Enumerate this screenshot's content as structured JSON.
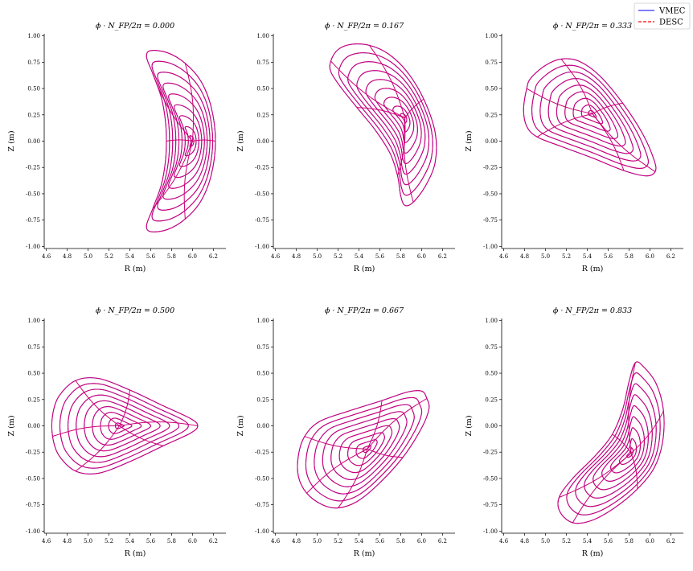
{
  "chart_data": {
    "type": "line",
    "figure": "Flux surfaces of a stellarator equilibrium at six toroidal angles (VMEC vs DESC)",
    "legend": {
      "placement": "top-right",
      "entries": [
        {
          "name": "VMEC",
          "color": "#3333ff",
          "style": "solid"
        },
        {
          "name": "DESC",
          "color": "#ff0000",
          "style": "dashed"
        }
      ]
    },
    "overlay_color": "#cc0077",
    "panels": [
      {
        "title": "ϕ · N_FP/2π = 0.000",
        "xlabel": "R (m)",
        "ylabel": "Z (m)",
        "xlim": [
          4.58,
          6.32
        ],
        "ylim": [
          -1.02,
          1.02
        ],
        "xticks": [
          "4.6",
          "4.8",
          "5.0",
          "5.2",
          "5.4",
          "5.6",
          "5.8",
          "6.0",
          "6.2"
        ],
        "yticks": [
          "-1.00",
          "-0.75",
          "-0.50",
          "-0.25",
          "0.00",
          "0.25",
          "0.50",
          "0.75",
          "1.00"
        ],
        "axis": [
          6.0,
          0.0
        ],
        "boundary": [
          [
            6.22,
            0.0
          ],
          [
            6.18,
            0.32
          ],
          [
            6.08,
            0.57
          ],
          [
            5.93,
            0.74
          ],
          [
            5.76,
            0.84
          ],
          [
            5.6,
            0.86
          ],
          [
            5.56,
            0.8
          ],
          [
            5.62,
            0.64
          ],
          [
            5.7,
            0.42
          ],
          [
            5.74,
            0.2
          ],
          [
            5.75,
            0.0
          ],
          [
            5.74,
            -0.2
          ],
          [
            5.7,
            -0.42
          ],
          [
            5.62,
            -0.64
          ],
          [
            5.56,
            -0.8
          ],
          [
            5.6,
            -0.86
          ],
          [
            5.76,
            -0.84
          ],
          [
            5.93,
            -0.74
          ],
          [
            6.08,
            -0.57
          ],
          [
            6.18,
            -0.32
          ]
        ]
      },
      {
        "title": "ϕ · N_FP/2π = 0.167",
        "xlabel": "R (m)",
        "ylabel": "Z (m)",
        "xlim": [
          4.58,
          6.32
        ],
        "ylim": [
          -1.02,
          1.02
        ],
        "xticks": [
          "4.6",
          "4.8",
          "5.0",
          "5.2",
          "5.4",
          "5.6",
          "5.8",
          "6.0",
          "6.2"
        ],
        "yticks": [
          "-1.00",
          "-0.75",
          "-0.50",
          "-0.25",
          "0.00",
          "0.25",
          "0.50",
          "0.75",
          "1.00"
        ],
        "axis": [
          5.84,
          0.22
        ],
        "boundary": [
          [
            5.13,
            0.76
          ],
          [
            5.2,
            0.87
          ],
          [
            5.33,
            0.92
          ],
          [
            5.5,
            0.91
          ],
          [
            5.68,
            0.83
          ],
          [
            5.86,
            0.66
          ],
          [
            6.02,
            0.4
          ],
          [
            6.13,
            0.08
          ],
          [
            6.13,
            -0.2
          ],
          [
            6.04,
            -0.42
          ],
          [
            5.92,
            -0.58
          ],
          [
            5.84,
            -0.61
          ],
          [
            5.8,
            -0.52
          ],
          [
            5.77,
            -0.33
          ],
          [
            5.7,
            -0.12
          ],
          [
            5.56,
            0.1
          ],
          [
            5.38,
            0.32
          ],
          [
            5.22,
            0.52
          ],
          [
            5.13,
            0.66
          ]
        ]
      },
      {
        "title": "ϕ · N_FP/2π = 0.333",
        "xlabel": "R (m)",
        "ylabel": "Z (m)",
        "xlim": [
          4.58,
          6.32
        ],
        "ylim": [
          -1.02,
          1.02
        ],
        "xticks": [
          "4.6",
          "4.8",
          "5.0",
          "5.2",
          "5.4",
          "5.6",
          "5.8",
          "6.0",
          "6.2"
        ],
        "yticks": [
          "-1.00",
          "-0.75",
          "-0.50",
          "-0.25",
          "0.00",
          "0.25",
          "0.50",
          "0.75",
          "1.00"
        ],
        "axis": [
          5.45,
          0.26
        ],
        "boundary": [
          [
            4.82,
            0.5
          ],
          [
            4.86,
            0.6
          ],
          [
            5.0,
            0.72
          ],
          [
            5.15,
            0.78
          ],
          [
            5.32,
            0.76
          ],
          [
            5.52,
            0.62
          ],
          [
            5.74,
            0.36
          ],
          [
            5.93,
            0.07
          ],
          [
            6.04,
            -0.18
          ],
          [
            6.05,
            -0.29
          ],
          [
            5.96,
            -0.33
          ],
          [
            5.75,
            -0.28
          ],
          [
            5.45,
            -0.16
          ],
          [
            5.15,
            -0.05
          ],
          [
            4.92,
            0.04
          ],
          [
            4.82,
            0.14
          ],
          [
            4.79,
            0.3
          ]
        ]
      },
      {
        "title": "ϕ · N_FP/2π = 0.500",
        "xlabel": "R (m)",
        "ylabel": "Z (m)",
        "xlim": [
          4.58,
          6.32
        ],
        "ylim": [
          -1.02,
          1.02
        ],
        "xticks": [
          "4.6",
          "4.8",
          "5.0",
          "5.2",
          "5.4",
          "5.6",
          "5.8",
          "6.0",
          "6.2"
        ],
        "yticks": [
          "-1.00",
          "-0.75",
          "-0.50",
          "-0.25",
          "0.00",
          "0.25",
          "0.50",
          "0.75",
          "1.00"
        ],
        "axis": [
          5.3,
          0.0
        ],
        "boundary": [
          [
            6.05,
            0.0
          ],
          [
            5.98,
            0.07
          ],
          [
            5.72,
            0.19
          ],
          [
            5.4,
            0.34
          ],
          [
            5.1,
            0.45
          ],
          [
            4.88,
            0.43
          ],
          [
            4.72,
            0.28
          ],
          [
            4.66,
            0.1
          ],
          [
            4.66,
            -0.1
          ],
          [
            4.72,
            -0.28
          ],
          [
            4.88,
            -0.43
          ],
          [
            5.1,
            -0.45
          ],
          [
            5.4,
            -0.34
          ],
          [
            5.72,
            -0.19
          ],
          [
            5.98,
            -0.07
          ]
        ]
      },
      {
        "title": "ϕ · N_FP/2π = 0.667",
        "xlabel": "R (m)",
        "ylabel": "Z (m)",
        "xlim": [
          4.58,
          6.32
        ],
        "ylim": [
          -1.02,
          1.02
        ],
        "xticks": [
          "4.6",
          "4.8",
          "5.0",
          "5.2",
          "5.4",
          "5.6",
          "5.8",
          "6.0",
          "6.2"
        ],
        "yticks": [
          "-1.00",
          "-0.75",
          "-0.50",
          "-0.25",
          "0.00",
          "0.25",
          "0.50",
          "0.75",
          "1.00"
        ],
        "axis": [
          5.48,
          -0.22
        ],
        "boundary": [
          [
            6.05,
            0.26
          ],
          [
            6.0,
            0.33
          ],
          [
            5.86,
            0.32
          ],
          [
            5.62,
            0.24
          ],
          [
            5.3,
            0.14
          ],
          [
            5.02,
            0.04
          ],
          [
            4.88,
            -0.1
          ],
          [
            4.82,
            -0.28
          ],
          [
            4.82,
            -0.48
          ],
          [
            4.9,
            -0.64
          ],
          [
            5.05,
            -0.75
          ],
          [
            5.2,
            -0.78
          ],
          [
            5.38,
            -0.72
          ],
          [
            5.58,
            -0.56
          ],
          [
            5.82,
            -0.3
          ],
          [
            6.0,
            -0.02
          ],
          [
            6.07,
            0.16
          ]
        ]
      },
      {
        "title": "ϕ · N_FP/2π = 0.833",
        "xlabel": "R (m)",
        "ylabel": "Z (m)",
        "xlim": [
          4.58,
          6.32
        ],
        "ylim": [
          -1.02,
          1.02
        ],
        "xticks": [
          "4.6",
          "4.8",
          "5.0",
          "5.2",
          "5.4",
          "5.6",
          "5.8",
          "6.0",
          "6.2"
        ],
        "yticks": [
          "-1.00",
          "-0.75",
          "-0.50",
          "-0.25",
          "0.00",
          "0.25",
          "0.50",
          "0.75",
          "1.00"
        ],
        "axis": [
          5.82,
          -0.26
        ],
        "boundary": [
          [
            5.86,
            0.6
          ],
          [
            5.94,
            0.56
          ],
          [
            6.06,
            0.4
          ],
          [
            6.13,
            0.14
          ],
          [
            6.12,
            -0.16
          ],
          [
            6.04,
            -0.4
          ],
          [
            5.88,
            -0.6
          ],
          [
            5.66,
            -0.78
          ],
          [
            5.44,
            -0.9
          ],
          [
            5.26,
            -0.92
          ],
          [
            5.14,
            -0.82
          ],
          [
            5.13,
            -0.68
          ],
          [
            5.26,
            -0.5
          ],
          [
            5.48,
            -0.28
          ],
          [
            5.64,
            -0.08
          ],
          [
            5.74,
            0.16
          ],
          [
            5.8,
            0.42
          ]
        ]
      }
    ]
  }
}
